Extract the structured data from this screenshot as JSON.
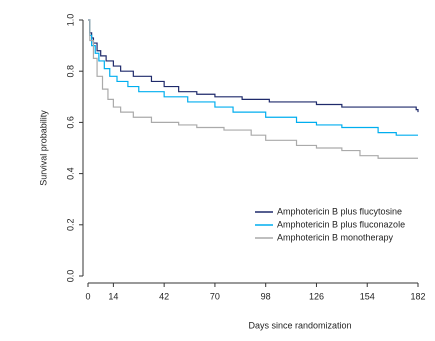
{
  "chart_data": {
    "type": "line",
    "step": true,
    "xlabel": "Days since randomization",
    "ylabel": "Survival probability",
    "xlim": [
      0,
      182
    ],
    "xticks": [
      0,
      14,
      42,
      70,
      98,
      126,
      154,
      182
    ],
    "ylim": [
      0,
      1
    ],
    "yticks": [
      {
        "value": 0,
        "label": "0.0"
      },
      0.2,
      0.4,
      0.6,
      0.8,
      {
        "value": 1,
        "label": "1.0"
      }
    ],
    "legend": "lower right",
    "series": [
      {
        "name": "Amphotericin B plus flucytosine",
        "color": "#1f2a6b",
        "x": [
          0,
          1,
          2,
          3,
          5,
          7,
          10,
          14,
          18,
          25,
          35,
          42,
          50,
          60,
          70,
          85,
          100,
          126,
          140,
          181,
          182
        ],
        "values": [
          1,
          0.95,
          0.93,
          0.91,
          0.88,
          0.86,
          0.84,
          0.82,
          0.8,
          0.78,
          0.76,
          0.74,
          0.72,
          0.71,
          0.7,
          0.69,
          0.68,
          0.67,
          0.66,
          0.65,
          0.64
        ]
      },
      {
        "name": "Amphotericin B plus fluconazole",
        "color": "#00aeef",
        "x": [
          0,
          1,
          2,
          4,
          6,
          9,
          12,
          16,
          22,
          28,
          42,
          55,
          70,
          80,
          98,
          115,
          126,
          140,
          160,
          170,
          182
        ],
        "values": [
          1,
          0.94,
          0.9,
          0.87,
          0.84,
          0.81,
          0.78,
          0.76,
          0.74,
          0.72,
          0.7,
          0.68,
          0.66,
          0.64,
          0.62,
          0.6,
          0.59,
          0.58,
          0.56,
          0.55,
          0.55
        ]
      },
      {
        "name": "Amphotericin B monotherapy",
        "color": "#aaaaaa",
        "x": [
          0,
          1,
          3,
          5,
          8,
          11,
          14,
          18,
          25,
          35,
          50,
          60,
          75,
          90,
          98,
          115,
          126,
          140,
          150,
          160,
          182
        ],
        "values": [
          1,
          0.92,
          0.85,
          0.78,
          0.73,
          0.69,
          0.66,
          0.64,
          0.62,
          0.6,
          0.59,
          0.58,
          0.57,
          0.55,
          0.53,
          0.51,
          0.5,
          0.49,
          0.47,
          0.46,
          0.46
        ]
      }
    ]
  }
}
